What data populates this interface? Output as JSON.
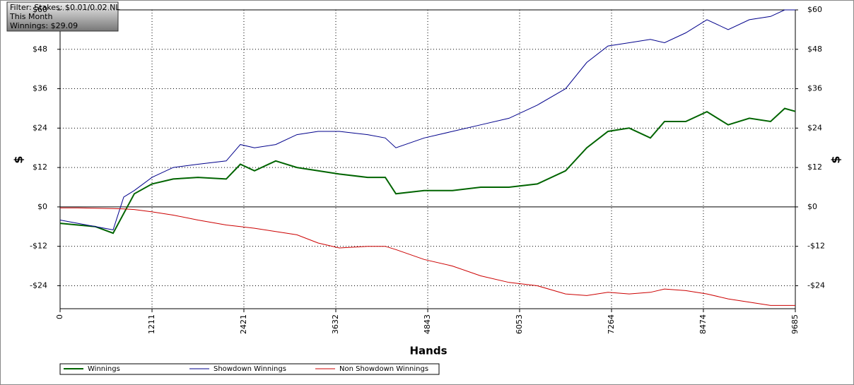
{
  "chart_data": {
    "type": "line",
    "info": [
      "Filter: Stakes: $0.01/0.02 NL",
      "This Month",
      "Winnings: $29.09"
    ],
    "xlabel": "Hands",
    "ylabel": "$",
    "y2label": "$",
    "x": [
      0,
      233,
      466,
      698,
      838,
      978,
      1211,
      1490,
      1816,
      2188,
      2375,
      2561,
      2840,
      3120,
      3399,
      3678,
      4051,
      4284,
      4423,
      4796,
      5168,
      5541,
      5913,
      6286,
      6658,
      6938,
      7217,
      7497,
      7776,
      7962,
      8242,
      8521,
      8800,
      9080,
      9359,
      9545,
      9685
    ],
    "xlim": [
      0,
      9685
    ],
    "xticks": [
      0,
      1211,
      2421,
      3632,
      4843,
      6053,
      7264,
      8474,
      9685
    ],
    "ylim": [
      -31,
      60
    ],
    "yticks": [
      {
        "value": -24,
        "label": "-$24"
      },
      {
        "value": -12,
        "label": "-$12"
      },
      {
        "value": 0,
        "label": "$0"
      },
      {
        "value": 12,
        "label": "$12"
      },
      {
        "value": 24,
        "label": "$24"
      },
      {
        "value": 36,
        "label": "$36"
      },
      {
        "value": 48,
        "label": "$48"
      },
      {
        "value": 60,
        "label": "$60"
      }
    ],
    "y2lim": [
      -31,
      60
    ],
    "y2ticks": [
      {
        "value": -24,
        "label": "-$24"
      },
      {
        "value": -12,
        "label": "-$12"
      },
      {
        "value": 0,
        "label": "$0"
      },
      {
        "value": 12,
        "label": "$12"
      },
      {
        "value": 24,
        "label": "$24"
      },
      {
        "value": 36,
        "label": "$36"
      },
      {
        "value": 48,
        "label": "$48"
      },
      {
        "value": 60,
        "label": "$60"
      }
    ],
    "grid": true,
    "series": [
      {
        "name": "Winnings",
        "color": "#006400",
        "values": [
          -5,
          -5.5,
          -6,
          -8,
          -2,
          4,
          7,
          8.5,
          9,
          8.5,
          13,
          11,
          14,
          12,
          11,
          10,
          9,
          9,
          4,
          5,
          5,
          6,
          6,
          7,
          11,
          18,
          23,
          24,
          21,
          26,
          26,
          29,
          25,
          27,
          26,
          30,
          29.09
        ]
      },
      {
        "name": "Showdown Winnings",
        "color": "#00008b",
        "values": [
          -4,
          -5,
          -6,
          -7,
          3,
          5,
          9,
          12,
          13,
          14,
          19,
          18,
          19,
          22,
          23,
          23,
          22,
          21,
          18,
          21,
          23,
          25,
          27,
          31,
          36,
          44,
          49,
          50,
          51,
          50,
          53,
          57,
          54,
          57,
          58,
          60,
          60
        ]
      },
      {
        "name": "Non Showdown Winnings",
        "color": "#cc0000",
        "values": [
          -0.3,
          -0.3,
          -0.4,
          -0.5,
          -0.6,
          -0.8,
          -1.5,
          -2.5,
          -4,
          -5.5,
          -6,
          -6.5,
          -7.5,
          -8.5,
          -11,
          -12.5,
          -12,
          -12,
          -13,
          -16,
          -18,
          -21,
          -23,
          -24,
          -26.5,
          -27,
          -26,
          -26.5,
          -26,
          -25,
          -25.5,
          -26.5,
          -28,
          -29,
          -30,
          -30,
          -30
        ]
      }
    ]
  }
}
